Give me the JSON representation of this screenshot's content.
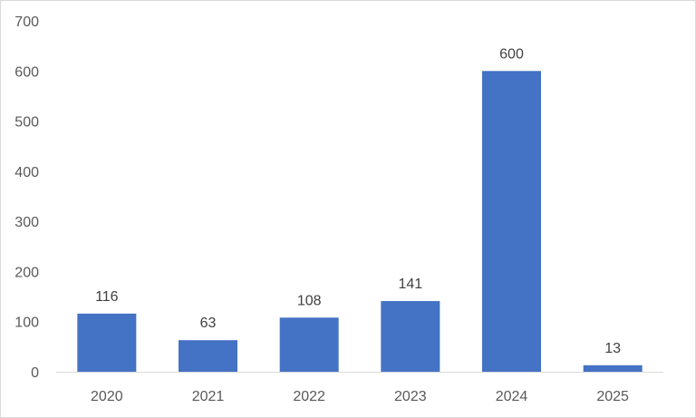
{
  "chart_data": {
    "type": "bar",
    "title": "",
    "xlabel": "",
    "ylabel": "",
    "categories": [
      "2020",
      "2021",
      "2022",
      "2023",
      "2024",
      "2025"
    ],
    "values": [
      116,
      63,
      108,
      141,
      600,
      13
    ],
    "data_labels": [
      "116",
      "63",
      "108",
      "141",
      "600",
      "13"
    ],
    "ylim": [
      0,
      700
    ],
    "yticks": [
      0,
      100,
      200,
      300,
      400,
      500,
      600,
      700
    ],
    "ytick_labels": [
      "0",
      "100",
      "200",
      "300",
      "400",
      "500",
      "600",
      "700"
    ],
    "grid": false,
    "legend": "none",
    "bar_color": "#4472C4",
    "axis_color": "#d9d9d9",
    "tick_label_color": "#595959"
  }
}
